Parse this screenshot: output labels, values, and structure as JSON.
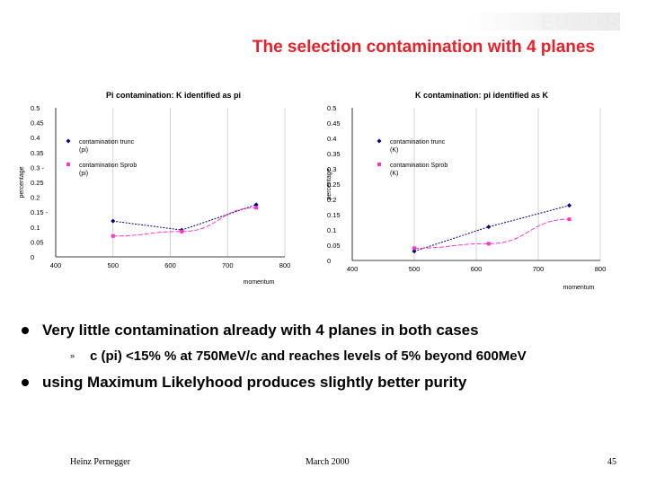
{
  "slide": {
    "title": "The selection contamination with 4 planes",
    "bullets": [
      "Very little contamination already with 4 planes in both cases",
      "c (pi) <15% % at 750MeV/c and reaches levels of 5% beyond 600MeV",
      "using Maximum Likelyhood produces slightly better purity"
    ],
    "footer_author": "Heinz Pernegger",
    "footer_date": "March 2000",
    "footer_page": "45"
  },
  "colors": {
    "title": "#e8202a",
    "series_trunc": "#000080",
    "series_sprob": "#ff33cc"
  },
  "chart_data": [
    {
      "type": "line",
      "title": "Pi contamination: K identified as pi",
      "xlabel": "momentum",
      "ylabel": "percentage",
      "xlim": [
        400,
        800
      ],
      "ylim": [
        0,
        0.5
      ],
      "xticks": [
        "400",
        "500",
        "600",
        "700",
        "800"
      ],
      "yticks": [
        "0",
        "0.05",
        "0.1",
        "0.15 -",
        "0.2",
        "0.25",
        "0.3 -",
        "0.35",
        "0.4",
        "0.45",
        "0.5"
      ],
      "grid": "vertical",
      "legend_position": "right",
      "series": [
        {
          "name": "contamination trunc (pi)",
          "x": [
            500,
            620,
            750
          ],
          "y": [
            0.12,
            0.09,
            0.175
          ],
          "marker": "diamond"
        },
        {
          "name": "contamination Sprob (pi)",
          "x": [
            500,
            620,
            750
          ],
          "y": [
            0.07,
            0.085,
            0.165
          ],
          "marker": "square"
        }
      ]
    },
    {
      "type": "line",
      "title": "K contamination: pi identified as K",
      "xlabel": "momentum",
      "ylabel": "percentage",
      "xlim": [
        400,
        800
      ],
      "ylim": [
        0,
        0.5
      ],
      "xticks": [
        "400",
        "500",
        "600",
        "700",
        "800"
      ],
      "yticks": [
        "0",
        "0.05",
        "0.1",
        "0.15",
        "0.2",
        "0.25",
        "0.3",
        "0.35",
        "0.4",
        "0.45",
        "0.5"
      ],
      "grid": "vertical",
      "legend_position": "right",
      "series": [
        {
          "name": "contamination trunc (K)",
          "x": [
            500,
            620,
            750
          ],
          "y": [
            0.03,
            0.11,
            0.18
          ],
          "marker": "diamond"
        },
        {
          "name": "contamination Sprob (K)",
          "x": [
            500,
            620,
            750
          ],
          "y": [
            0.04,
            0.055,
            0.135
          ],
          "marker": "square"
        }
      ]
    }
  ]
}
